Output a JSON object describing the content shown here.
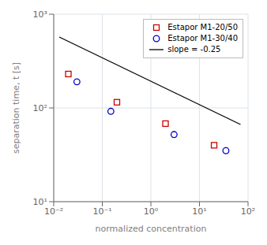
{
  "chart_data": {
    "type": "scatter",
    "xlabel": "normalized concentration",
    "ylabel": "separation time, t [s]",
    "log": true,
    "xlim": [
      0.01,
      100
    ],
    "ylim": [
      10,
      1000
    ],
    "xticks": [
      {
        "value": 0.01,
        "label": "10⁻²"
      },
      {
        "value": 0.1,
        "label": "10⁻¹"
      },
      {
        "value": 1,
        "label": "10⁰"
      },
      {
        "value": 10,
        "label": "10¹"
      },
      {
        "value": 100,
        "label": "10²"
      }
    ],
    "yticks": [
      {
        "value": 10,
        "label": "10¹"
      },
      {
        "value": 100,
        "label": "10²"
      },
      {
        "value": 1000,
        "label": "10³"
      }
    ],
    "grid": true,
    "legend": "upper right",
    "series": [
      {
        "name": "Estapor M1-20/50",
        "type": "scatter",
        "color": "#cc0000",
        "marker": "square",
        "x": [
          0.02,
          0.2,
          2.0,
          20.0
        ],
        "values": [
          230,
          115,
          68,
          40
        ]
      },
      {
        "name": "Estapor M1-30/40",
        "type": "scatter",
        "color": "#0000cc",
        "marker": "circle",
        "x": [
          0.03,
          0.15,
          3.0,
          35.0
        ],
        "values": [
          190,
          92,
          52,
          35
        ]
      },
      {
        "name": "slope = -0.25",
        "type": "line",
        "color": "#000000",
        "line_style": "solid",
        "x": [
          0.013,
          70
        ],
        "values": [
          570.84,
          66.64
        ]
      }
    ]
  }
}
